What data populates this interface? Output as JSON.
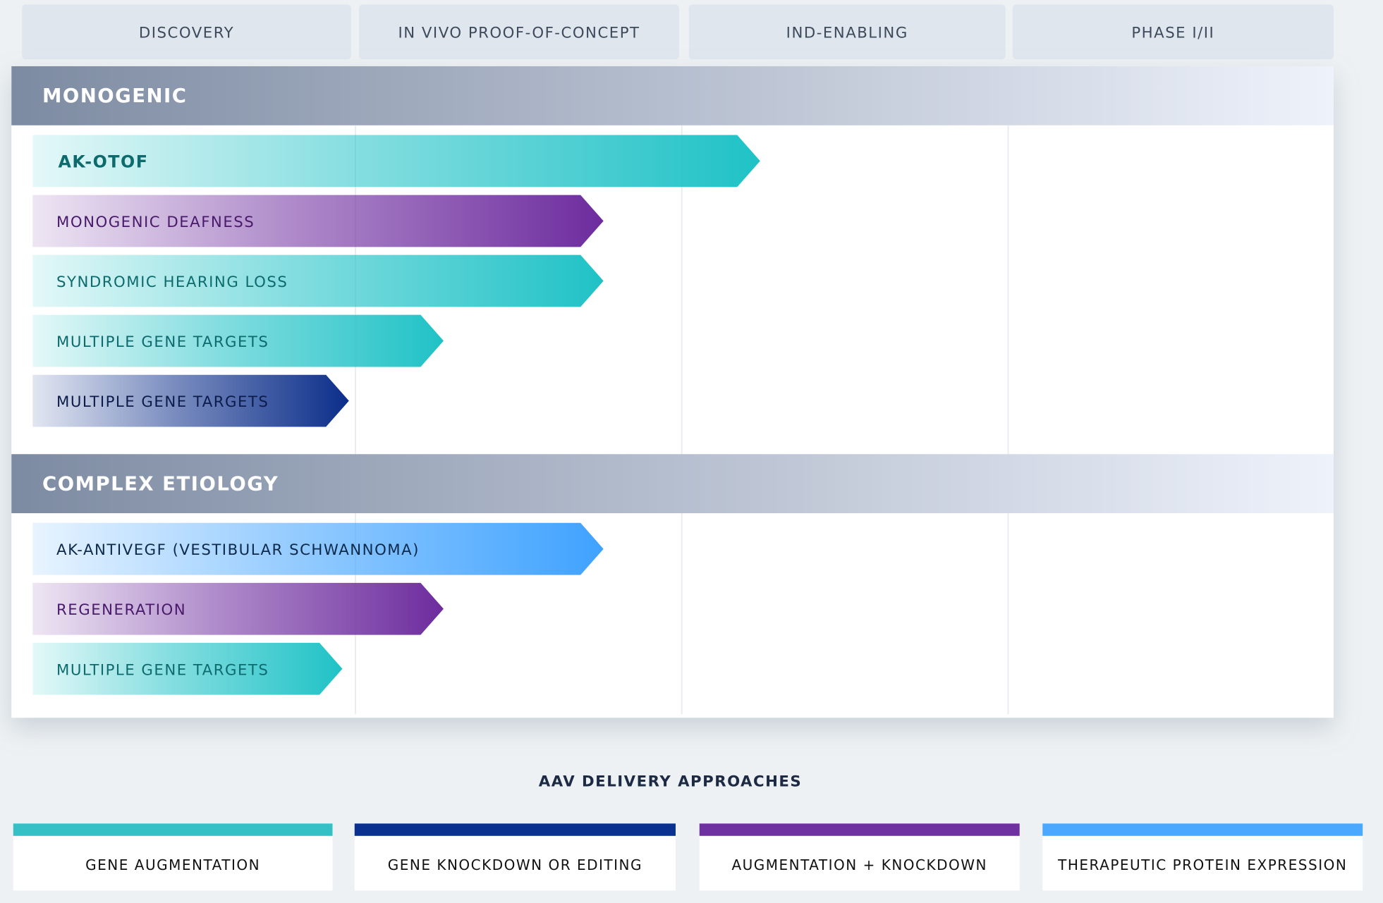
{
  "phases": [
    "DISCOVERY",
    "IN VIVO PROOF-OF-CONCEPT",
    "IND-ENABLING",
    "PHASE I/II"
  ],
  "groups": [
    {
      "title": "MONOGENIC",
      "programs": [
        {
          "label": "AK-OTOF",
          "color": "#1fc2c6",
          "text_color": "#0d6b6e",
          "progress": 2.24
        },
        {
          "label": "MONOGENIC DEAFNESS",
          "color": "#6d2c9e",
          "text_color": "#4a1a6a",
          "progress": 1.76
        },
        {
          "label": "SYNDROMIC HEARING LOSS",
          "color": "#1fc2c6",
          "text_color": "#0d6b6e",
          "progress": 1.76
        },
        {
          "label": "MULTIPLE GENE TARGETS",
          "color": "#1fc2c6",
          "text_color": "#0d6b6e",
          "progress": 1.27
        },
        {
          "label": "MULTIPLE GENE TARGETS",
          "color": "#0b2e8a",
          "text_color": "#0d1b4a",
          "progress": 0.98
        }
      ]
    },
    {
      "title": "COMPLEX ETIOLOGY",
      "programs": [
        {
          "label": "AK-ANTIVEGF (VESTIBULAR SCHWANNOMA)",
          "color": "#3fa2ff",
          "text_color": "#0d2a4a",
          "progress": 1.76
        },
        {
          "label": "REGENERATION",
          "color": "#6d2c9e",
          "text_color": "#4a1a6a",
          "progress": 1.27
        },
        {
          "label": "MULTIPLE GENE TARGETS",
          "color": "#1fc2c6",
          "text_color": "#0d6b6e",
          "progress": 0.96
        }
      ]
    }
  ],
  "legend": {
    "title": "AAV DELIVERY APPROACHES",
    "items": [
      {
        "label": "GENE AUGMENTATION",
        "color": "#35c0c6"
      },
      {
        "label": "GENE KNOCKDOWN OR EDITING",
        "color": "#0a318f"
      },
      {
        "label": "AUGMENTATION + KNOCKDOWN",
        "color": "#6f31a0"
      },
      {
        "label": "THERAPEUTIC PROTEIN EXPRESSION",
        "color": "#4aa8ff"
      }
    ]
  }
}
